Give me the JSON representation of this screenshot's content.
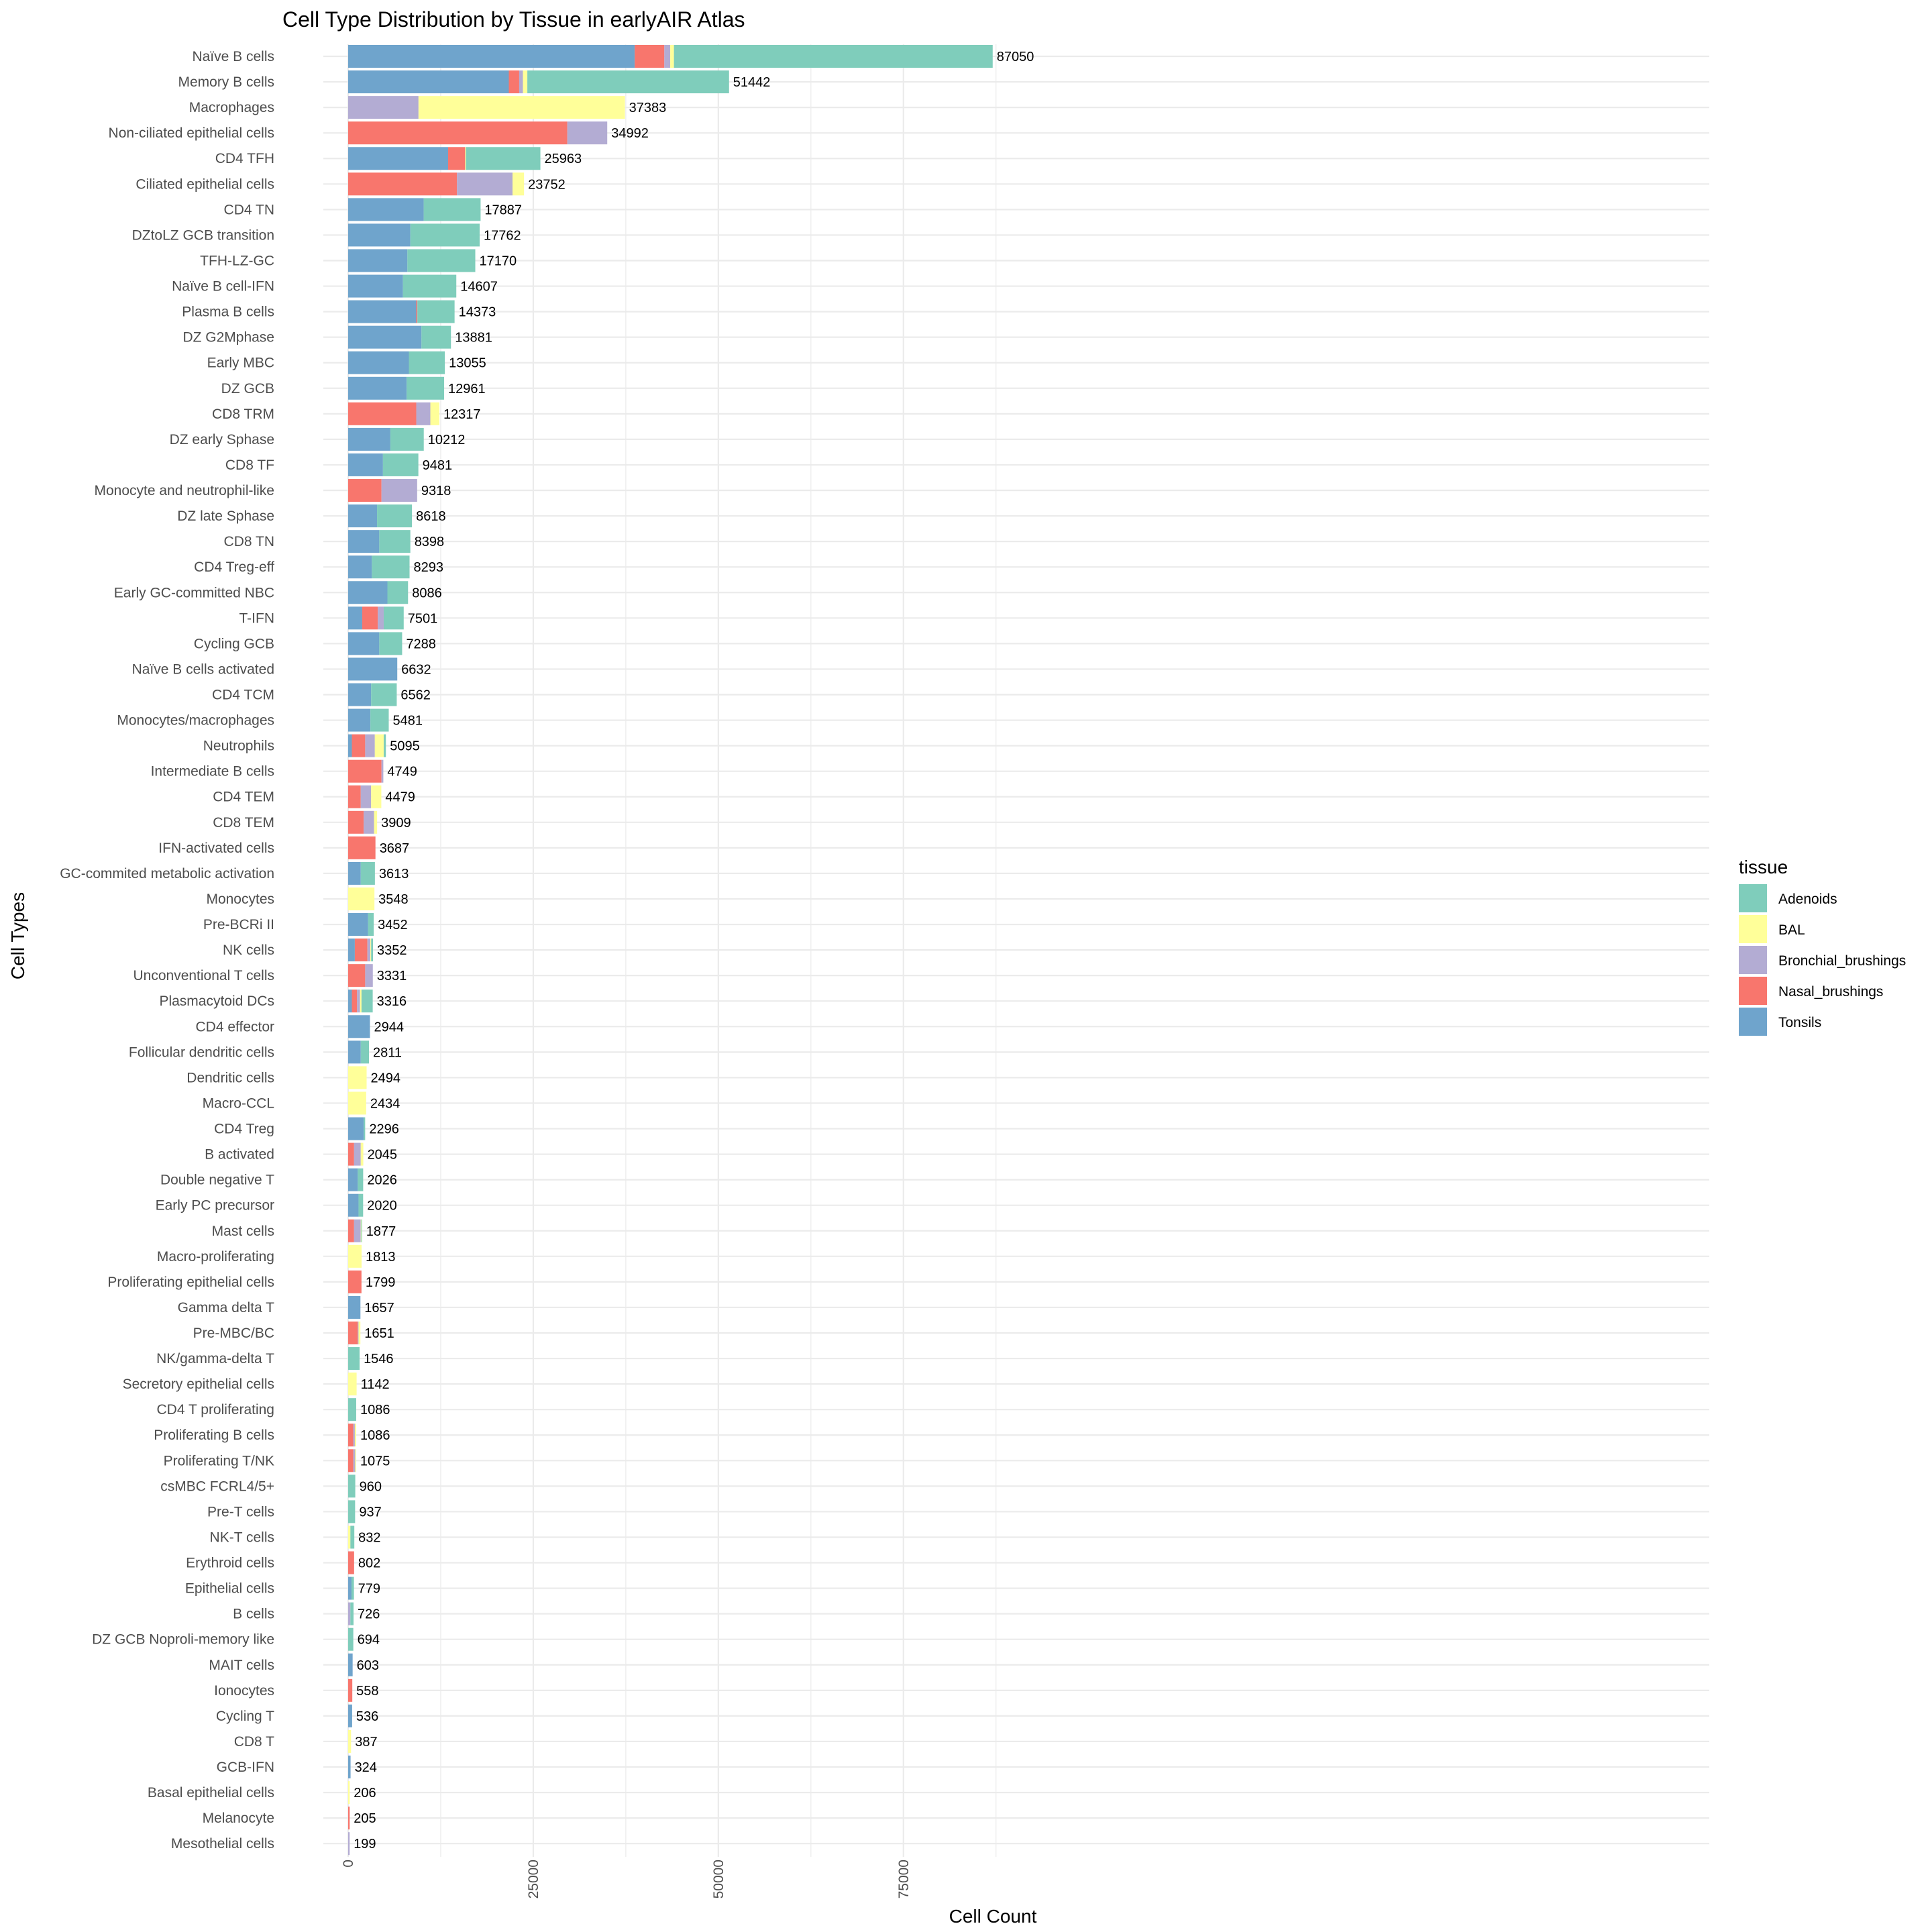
{
  "chart_data": {
    "type": "bar",
    "orientation": "horizontal",
    "stacked": true,
    "title": "Cell Type Distribution by Tissue in earlyAIR Atlas",
    "xlabel": "Cell Count",
    "ylabel": "Cell Types",
    "xlim": [
      0,
      91500
    ],
    "xticks": [
      0,
      25000,
      50000,
      75000
    ],
    "xtick_labels": [
      "0",
      "25000",
      "50000",
      "75000"
    ],
    "grid": true,
    "legend": {
      "title": "tissue",
      "position": "right",
      "entries": [
        {
          "name": "Adenoids",
          "color": "#7FCDBB"
        },
        {
          "name": "BAL",
          "color": "#FFFF99"
        },
        {
          "name": "Bronchial_brushings",
          "color": "#B3ACD3"
        },
        {
          "name": "Nasal_brushings",
          "color": "#F8766D"
        },
        {
          "name": "Tonsils",
          "color": "#6FA4CC"
        }
      ]
    },
    "stack_order": [
      "Tonsils",
      "Nasal_brushings",
      "Bronchial_brushings",
      "BAL",
      "Adenoids"
    ],
    "categories": [
      {
        "name": "Naïve B cells",
        "total": 87050,
        "values": {
          "Tonsils": 38700,
          "Nasal_brushings": 4000,
          "Bronchial_brushings": 800,
          "BAL": 500,
          "Adenoids": 43050
        }
      },
      {
        "name": "Memory B cells",
        "total": 51442,
        "values": {
          "Tonsils": 21700,
          "Nasal_brushings": 1400,
          "Bronchial_brushings": 500,
          "BAL": 600,
          "Adenoids": 27242
        }
      },
      {
        "name": "Macrophages",
        "total": 37383,
        "values": {
          "Tonsils": 0,
          "Nasal_brushings": 0,
          "Bronchial_brushings": 9500,
          "BAL": 27883,
          "Adenoids": 0
        }
      },
      {
        "name": "Non-ciliated epithelial cells",
        "total": 34992,
        "values": {
          "Tonsils": 0,
          "Nasal_brushings": 29600,
          "Bronchial_brushings": 5392,
          "BAL": 0,
          "Adenoids": 0
        }
      },
      {
        "name": "CD4 TFH",
        "total": 25963,
        "values": {
          "Tonsils": 13500,
          "Nasal_brushings": 2300,
          "Bronchial_brushings": 0,
          "BAL": 100,
          "Adenoids": 10063
        }
      },
      {
        "name": "Ciliated epithelial cells",
        "total": 23752,
        "values": {
          "Tonsils": 0,
          "Nasal_brushings": 14700,
          "Bronchial_brushings": 7500,
          "BAL": 1552,
          "Adenoids": 0
        }
      },
      {
        "name": "CD4 TN",
        "total": 17887,
        "values": {
          "Tonsils": 10200,
          "Nasal_brushings": 0,
          "Bronchial_brushings": 0,
          "BAL": 0,
          "Adenoids": 7687
        }
      },
      {
        "name": "DZtoLZ GCB transition",
        "total": 17762,
        "values": {
          "Tonsils": 8400,
          "Nasal_brushings": 0,
          "Bronchial_brushings": 0,
          "BAL": 0,
          "Adenoids": 9362
        }
      },
      {
        "name": "TFH-LZ-GC",
        "total": 17170,
        "values": {
          "Tonsils": 8000,
          "Nasal_brushings": 0,
          "Bronchial_brushings": 0,
          "BAL": 0,
          "Adenoids": 9170
        }
      },
      {
        "name": "Naïve B cell-IFN",
        "total": 14607,
        "values": {
          "Tonsils": 7400,
          "Nasal_brushings": 0,
          "Bronchial_brushings": 0,
          "BAL": 0,
          "Adenoids": 7207
        }
      },
      {
        "name": "Plasma B cells",
        "total": 14373,
        "values": {
          "Tonsils": 9200,
          "Nasal_brushings": 150,
          "Bronchial_brushings": 0,
          "BAL": 0,
          "Adenoids": 5023
        }
      },
      {
        "name": "DZ G2Mphase",
        "total": 13881,
        "values": {
          "Tonsils": 9900,
          "Nasal_brushings": 0,
          "Bronchial_brushings": 0,
          "BAL": 0,
          "Adenoids": 3981
        }
      },
      {
        "name": "Early MBC",
        "total": 13055,
        "values": {
          "Tonsils": 8200,
          "Nasal_brushings": 0,
          "Bronchial_brushings": 0,
          "BAL": 0,
          "Adenoids": 4855
        }
      },
      {
        "name": "DZ GCB",
        "total": 12961,
        "values": {
          "Tonsils": 7900,
          "Nasal_brushings": 0,
          "Bronchial_brushings": 0,
          "BAL": 0,
          "Adenoids": 5061
        }
      },
      {
        "name": "CD8 TRM",
        "total": 12317,
        "values": {
          "Tonsils": 0,
          "Nasal_brushings": 9200,
          "Bronchial_brushings": 1900,
          "BAL": 1217,
          "Adenoids": 0
        }
      },
      {
        "name": "DZ early  Sphase",
        "total": 10212,
        "values": {
          "Tonsils": 5700,
          "Nasal_brushings": 0,
          "Bronchial_brushings": 0,
          "BAL": 0,
          "Adenoids": 4512
        }
      },
      {
        "name": "CD8 TF",
        "total": 9481,
        "values": {
          "Tonsils": 4700,
          "Nasal_brushings": 0,
          "Bronchial_brushings": 0,
          "BAL": 0,
          "Adenoids": 4781
        }
      },
      {
        "name": "Monocyte and neutrophil-like",
        "total": 9318,
        "values": {
          "Tonsils": 0,
          "Nasal_brushings": 4500,
          "Bronchial_brushings": 4818,
          "BAL": 0,
          "Adenoids": 0
        }
      },
      {
        "name": "DZ late Sphase",
        "total": 8618,
        "values": {
          "Tonsils": 3900,
          "Nasal_brushings": 0,
          "Bronchial_brushings": 0,
          "BAL": 0,
          "Adenoids": 4718
        }
      },
      {
        "name": "CD8 TN",
        "total": 8398,
        "values": {
          "Tonsils": 4200,
          "Nasal_brushings": 0,
          "Bronchial_brushings": 0,
          "BAL": 0,
          "Adenoids": 4198
        }
      },
      {
        "name": "CD4 Treg-eff",
        "total": 8293,
        "values": {
          "Tonsils": 3200,
          "Nasal_brushings": 0,
          "Bronchial_brushings": 0,
          "BAL": 0,
          "Adenoids": 5093
        }
      },
      {
        "name": "Early GC-committed NBC",
        "total": 8086,
        "values": {
          "Tonsils": 5300,
          "Nasal_brushings": 0,
          "Bronchial_brushings": 0,
          "BAL": 0,
          "Adenoids": 2786
        }
      },
      {
        "name": "T-IFN",
        "total": 7501,
        "values": {
          "Tonsils": 1900,
          "Nasal_brushings": 2100,
          "Bronchial_brushings": 800,
          "BAL": 0,
          "Adenoids": 2701
        }
      },
      {
        "name": "Cycling GCB",
        "total": 7288,
        "values": {
          "Tonsils": 4200,
          "Nasal_brushings": 0,
          "Bronchial_brushings": 0,
          "BAL": 0,
          "Adenoids": 3088
        }
      },
      {
        "name": "Naïve B cells activated",
        "total": 6632,
        "values": {
          "Tonsils": 6632,
          "Nasal_brushings": 0,
          "Bronchial_brushings": 0,
          "BAL": 0,
          "Adenoids": 0
        }
      },
      {
        "name": "CD4 TCM",
        "total": 6562,
        "values": {
          "Tonsils": 3100,
          "Nasal_brushings": 0,
          "Bronchial_brushings": 0,
          "BAL": 0,
          "Adenoids": 3462
        }
      },
      {
        "name": "Monocytes/macrophages",
        "total": 5481,
        "values": {
          "Tonsils": 3000,
          "Nasal_brushings": 0,
          "Bronchial_brushings": 0,
          "BAL": 0,
          "Adenoids": 2481
        }
      },
      {
        "name": "Neutrophils",
        "total": 5095,
        "values": {
          "Tonsils": 500,
          "Nasal_brushings": 1800,
          "Bronchial_brushings": 1300,
          "BAL": 1200,
          "Adenoids": 295
        }
      },
      {
        "name": "Intermediate B cells",
        "total": 4749,
        "values": {
          "Tonsils": 0,
          "Nasal_brushings": 4500,
          "Bronchial_brushings": 249,
          "BAL": 0,
          "Adenoids": 0
        }
      },
      {
        "name": "CD4 TEM",
        "total": 4479,
        "values": {
          "Tonsils": 0,
          "Nasal_brushings": 1700,
          "Bronchial_brushings": 1400,
          "BAL": 1379,
          "Adenoids": 0
        }
      },
      {
        "name": "CD8 TEM",
        "total": 3909,
        "values": {
          "Tonsils": 0,
          "Nasal_brushings": 2100,
          "Bronchial_brushings": 1400,
          "BAL": 409,
          "Adenoids": 0
        }
      },
      {
        "name": "IFN-activated cells",
        "total": 3687,
        "values": {
          "Tonsils": 0,
          "Nasal_brushings": 3687,
          "Bronchial_brushings": 0,
          "BAL": 0,
          "Adenoids": 0
        }
      },
      {
        "name": "GC-commited metabolic activation",
        "total": 3613,
        "values": {
          "Tonsils": 1700,
          "Nasal_brushings": 0,
          "Bronchial_brushings": 0,
          "BAL": 0,
          "Adenoids": 1913
        }
      },
      {
        "name": "Monocytes",
        "total": 3548,
        "values": {
          "Tonsils": 0,
          "Nasal_brushings": 0,
          "Bronchial_brushings": 0,
          "BAL": 3548,
          "Adenoids": 0
        }
      },
      {
        "name": "Pre-BCRi II",
        "total": 3452,
        "values": {
          "Tonsils": 2700,
          "Nasal_brushings": 0,
          "Bronchial_brushings": 0,
          "BAL": 0,
          "Adenoids": 752
        }
      },
      {
        "name": "NK cells",
        "total": 3352,
        "values": {
          "Tonsils": 900,
          "Nasal_brushings": 1700,
          "Bronchial_brushings": 400,
          "BAL": 100,
          "Adenoids": 252
        }
      },
      {
        "name": "Unconventional T cells",
        "total": 3331,
        "values": {
          "Tonsils": 0,
          "Nasal_brushings": 2300,
          "Bronchial_brushings": 1031,
          "BAL": 0,
          "Adenoids": 0
        }
      },
      {
        "name": "Plasmacytoid DCs",
        "total": 3316,
        "values": {
          "Tonsils": 500,
          "Nasal_brushings": 700,
          "Bronchial_brushings": 400,
          "BAL": 200,
          "Adenoids": 1516
        }
      },
      {
        "name": "CD4 effector",
        "total": 2944,
        "values": {
          "Tonsils": 2944,
          "Nasal_brushings": 0,
          "Bronchial_brushings": 0,
          "BAL": 0,
          "Adenoids": 0
        }
      },
      {
        "name": "Follicular dendritic cells",
        "total": 2811,
        "values": {
          "Tonsils": 1700,
          "Nasal_brushings": 0,
          "Bronchial_brushings": 0,
          "BAL": 0,
          "Adenoids": 1111
        }
      },
      {
        "name": "Dendritic cells",
        "total": 2494,
        "values": {
          "Tonsils": 0,
          "Nasal_brushings": 0,
          "Bronchial_brushings": 0,
          "BAL": 2494,
          "Adenoids": 0
        }
      },
      {
        "name": "Macro-CCL",
        "total": 2434,
        "values": {
          "Tonsils": 0,
          "Nasal_brushings": 0,
          "Bronchial_brushings": 0,
          "BAL": 2434,
          "Adenoids": 0
        }
      },
      {
        "name": "CD4 Treg",
        "total": 2296,
        "values": {
          "Tonsils": 2100,
          "Nasal_brushings": 0,
          "Bronchial_brushings": 0,
          "BAL": 0,
          "Adenoids": 196
        }
      },
      {
        "name": "B activated",
        "total": 2045,
        "values": {
          "Tonsils": 0,
          "Nasal_brushings": 800,
          "Bronchial_brushings": 900,
          "BAL": 345,
          "Adenoids": 0
        }
      },
      {
        "name": "Double negative T",
        "total": 2026,
        "values": {
          "Tonsils": 1300,
          "Nasal_brushings": 0,
          "Bronchial_brushings": 0,
          "BAL": 0,
          "Adenoids": 726
        }
      },
      {
        "name": "Early PC precursor",
        "total": 2020,
        "values": {
          "Tonsils": 1400,
          "Nasal_brushings": 0,
          "Bronchial_brushings": 0,
          "BAL": 0,
          "Adenoids": 620
        }
      },
      {
        "name": "Mast cells",
        "total": 1877,
        "values": {
          "Tonsils": 0,
          "Nasal_brushings": 800,
          "Bronchial_brushings": 900,
          "BAL": 77,
          "Adenoids": 100
        }
      },
      {
        "name": "Macro-proliferating",
        "total": 1813,
        "values": {
          "Tonsils": 0,
          "Nasal_brushings": 0,
          "Bronchial_brushings": 0,
          "BAL": 1813,
          "Adenoids": 0
        }
      },
      {
        "name": "Proliferating epithelial cells",
        "total": 1799,
        "values": {
          "Tonsils": 0,
          "Nasal_brushings": 1799,
          "Bronchial_brushings": 0,
          "BAL": 0,
          "Adenoids": 0
        }
      },
      {
        "name": "Gamma delta T",
        "total": 1657,
        "values": {
          "Tonsils": 1657,
          "Nasal_brushings": 0,
          "Bronchial_brushings": 0,
          "BAL": 0,
          "Adenoids": 0
        }
      },
      {
        "name": "Pre-MBC/BC",
        "total": 1651,
        "values": {
          "Tonsils": 0,
          "Nasal_brushings": 1300,
          "Bronchial_brushings": 100,
          "BAL": 251,
          "Adenoids": 0
        }
      },
      {
        "name": "NK/gamma-delta T",
        "total": 1546,
        "values": {
          "Tonsils": 0,
          "Nasal_brushings": 0,
          "Bronchial_brushings": 0,
          "BAL": 0,
          "Adenoids": 1546
        }
      },
      {
        "name": "Secretory epithelial cells",
        "total": 1142,
        "values": {
          "Tonsils": 0,
          "Nasal_brushings": 0,
          "Bronchial_brushings": 0,
          "BAL": 1142,
          "Adenoids": 0
        }
      },
      {
        "name": "CD4 T proliferating",
        "total": 1086,
        "values": {
          "Tonsils": 0,
          "Nasal_brushings": 0,
          "Bronchial_brushings": 0,
          "BAL": 0,
          "Adenoids": 1086
        }
      },
      {
        "name": "Proliferating B cells",
        "total": 1086,
        "values": {
          "Tonsils": 0,
          "Nasal_brushings": 700,
          "Bronchial_brushings": 200,
          "BAL": 186,
          "Adenoids": 0
        }
      },
      {
        "name": "Proliferating T/NK",
        "total": 1075,
        "values": {
          "Tonsils": 0,
          "Nasal_brushings": 700,
          "Bronchial_brushings": 250,
          "BAL": 125,
          "Adenoids": 0
        }
      },
      {
        "name": "csMBC FCRL4/5+",
        "total": 960,
        "values": {
          "Tonsils": 0,
          "Nasal_brushings": 0,
          "Bronchial_brushings": 0,
          "BAL": 0,
          "Adenoids": 960
        }
      },
      {
        "name": "Pre-T cells",
        "total": 937,
        "values": {
          "Tonsils": 0,
          "Nasal_brushings": 0,
          "Bronchial_brushings": 0,
          "BAL": 0,
          "Adenoids": 937
        }
      },
      {
        "name": "NK-T cells",
        "total": 832,
        "values": {
          "Tonsils": 0,
          "Nasal_brushings": 0,
          "Bronchial_brushings": 0,
          "BAL": 300,
          "Adenoids": 532
        }
      },
      {
        "name": "Erythroid cells",
        "total": 802,
        "values": {
          "Tonsils": 0,
          "Nasal_brushings": 802,
          "Bronchial_brushings": 0,
          "BAL": 0,
          "Adenoids": 0
        }
      },
      {
        "name": "Epithelial cells",
        "total": 779,
        "values": {
          "Tonsils": 450,
          "Nasal_brushings": 0,
          "Bronchial_brushings": 0,
          "BAL": 0,
          "Adenoids": 329
        }
      },
      {
        "name": "B cells",
        "total": 726,
        "values": {
          "Tonsils": 0,
          "Nasal_brushings": 0,
          "Bronchial_brushings": 300,
          "BAL": 0,
          "Adenoids": 426
        }
      },
      {
        "name": "DZ GCB Noproli-memory like",
        "total": 694,
        "values": {
          "Tonsils": 0,
          "Nasal_brushings": 0,
          "Bronchial_brushings": 0,
          "BAL": 0,
          "Adenoids": 694
        }
      },
      {
        "name": "MAIT cells",
        "total": 603,
        "values": {
          "Tonsils": 603,
          "Nasal_brushings": 0,
          "Bronchial_brushings": 0,
          "BAL": 0,
          "Adenoids": 0
        }
      },
      {
        "name": "Ionocytes",
        "total": 558,
        "values": {
          "Tonsils": 0,
          "Nasal_brushings": 558,
          "Bronchial_brushings": 0,
          "BAL": 0,
          "Adenoids": 0
        }
      },
      {
        "name": "Cycling T",
        "total": 536,
        "values": {
          "Tonsils": 536,
          "Nasal_brushings": 0,
          "Bronchial_brushings": 0,
          "BAL": 0,
          "Adenoids": 0
        }
      },
      {
        "name": "CD8 T",
        "total": 387,
        "values": {
          "Tonsils": 0,
          "Nasal_brushings": 0,
          "Bronchial_brushings": 0,
          "BAL": 387,
          "Adenoids": 0
        }
      },
      {
        "name": "GCB-IFN",
        "total": 324,
        "values": {
          "Tonsils": 324,
          "Nasal_brushings": 0,
          "Bronchial_brushings": 0,
          "BAL": 0,
          "Adenoids": 0
        }
      },
      {
        "name": "Basal epithelial cells",
        "total": 206,
        "values": {
          "Tonsils": 0,
          "Nasal_brushings": 0,
          "Bronchial_brushings": 0,
          "BAL": 206,
          "Adenoids": 0
        }
      },
      {
        "name": "Melanocyte",
        "total": 205,
        "values": {
          "Tonsils": 0,
          "Nasal_brushings": 205,
          "Bronchial_brushings": 0,
          "BAL": 0,
          "Adenoids": 0
        }
      },
      {
        "name": "Mesothelial cells",
        "total": 199,
        "values": {
          "Tonsils": 0,
          "Nasal_brushings": 0,
          "Bronchial_brushings": 199,
          "BAL": 0,
          "Adenoids": 0
        }
      }
    ]
  }
}
